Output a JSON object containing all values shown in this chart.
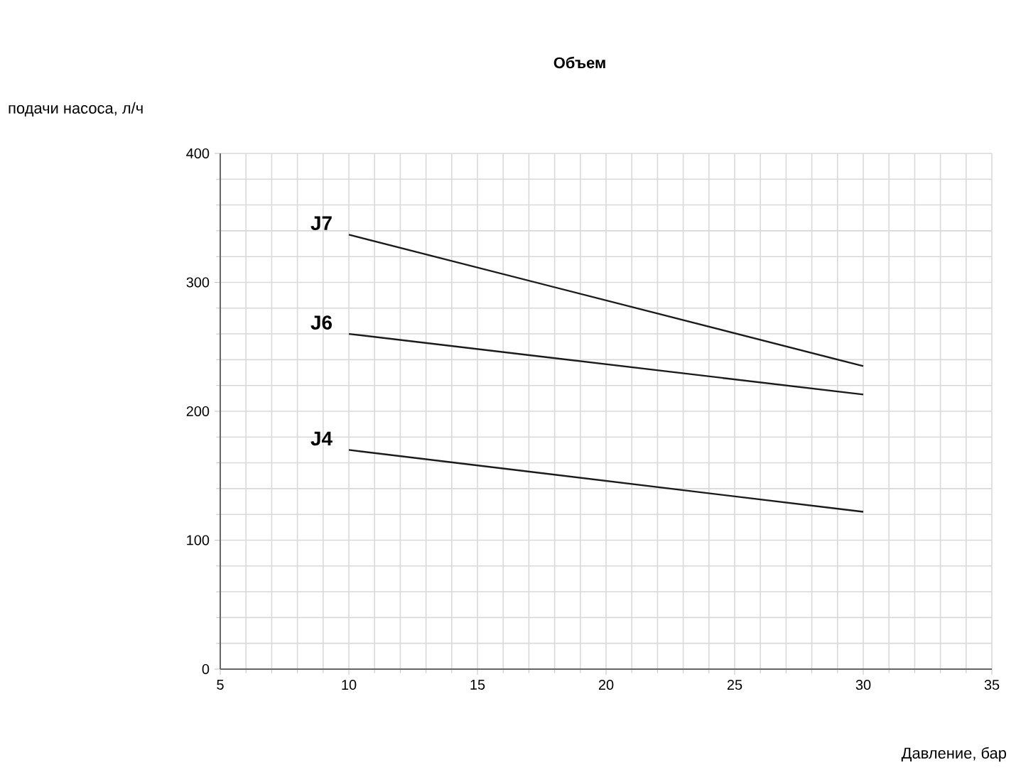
{
  "chart_data": {
    "type": "line",
    "title": "Объем",
    "annotations": [
      "подачи насоса, л/ч"
    ],
    "xlabel": "Давление, бар",
    "x": [
      10,
      30
    ],
    "series": [
      {
        "name": "J7",
        "color": "#1a1a1a",
        "values": [
          337,
          235
        ]
      },
      {
        "name": "J6",
        "color": "#1a1a1a",
        "values": [
          260,
          213
        ]
      },
      {
        "name": "J4",
        "color": "#1a1a1a",
        "values": [
          170,
          122
        ]
      }
    ],
    "xlim": [
      5,
      35
    ],
    "ylim": [
      0,
      400
    ],
    "xticks": [
      5,
      10,
      15,
      20,
      25,
      30,
      35
    ],
    "yticks": [
      0,
      100,
      200,
      300,
      400
    ],
    "grid": true,
    "marker": "none",
    "line_style": "solid"
  }
}
